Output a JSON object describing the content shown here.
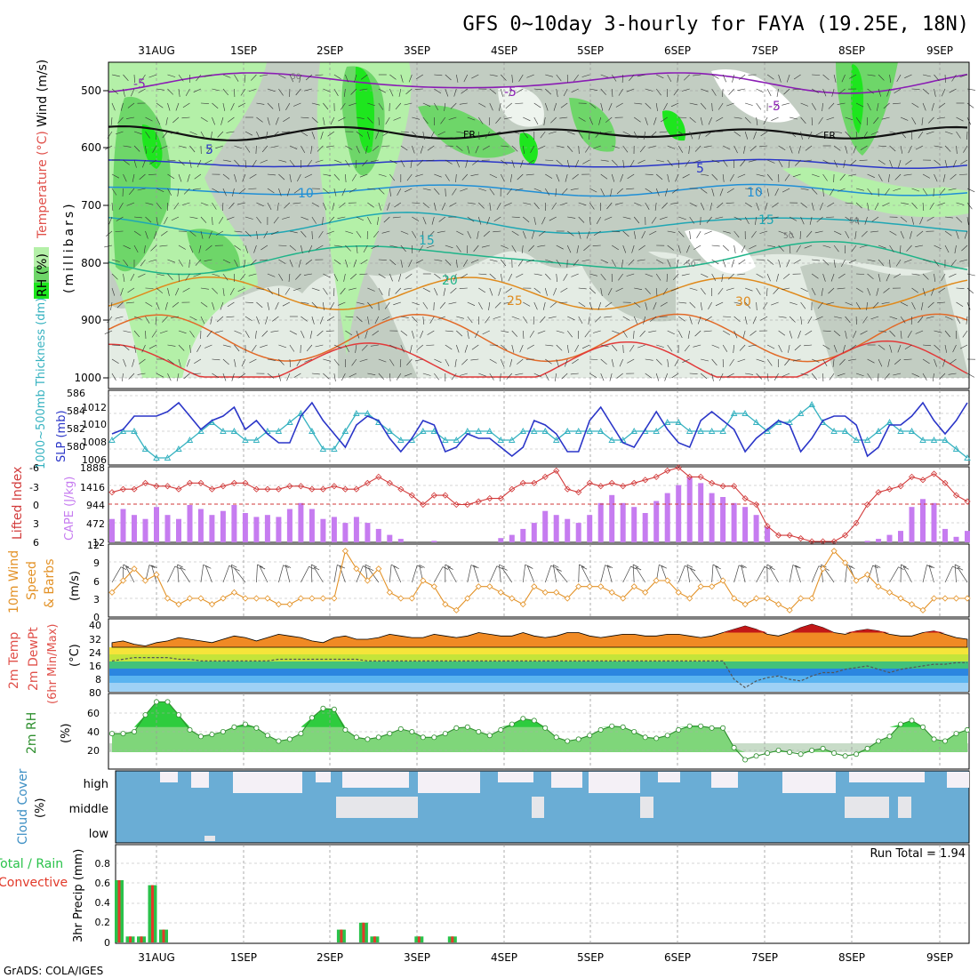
{
  "title": "GFS 0~10day 3-hourly for FAYA (19.25E, 18N)",
  "footer": "GrADS: COLA/IGES",
  "x_axis": {
    "day_labels": [
      "31AUG",
      "1SEP",
      "2SEP",
      "3SEP",
      "4SEP",
      "5SEP",
      "6SEP",
      "7SEP",
      "8SEP",
      "9SEP"
    ]
  },
  "colors": {
    "rh_green_light": "#b4f0a8",
    "rh_green_mid": "#6ed669",
    "rh_green_bright": "#1ee61e",
    "dry_gray": "#c2cdc2",
    "dry_gray_light": "#e4ece4",
    "slp_blue": "#2a35c8",
    "thickness_cyan": "#36b2c0",
    "lifted_red": "#d23a3a",
    "cape_purple": "#c67cf0",
    "wind_orange": "#e39227",
    "rh2m_green": "#2e8f2e",
    "cloud_blue": "#6aadd5",
    "cloud_white": "#f4f0f6",
    "precip_green": "#29c24a",
    "precip_red": "#e23a2a"
  },
  "panels": {
    "upper": {
      "ylabel_rh": "RH (%)",
      "ylabel_temp": "Temperature (°C)",
      "ylabel_wind": "Wind (m/s)",
      "ylabel_units": "(millibars)",
      "pressure_ticks": [
        "500",
        "600",
        "700",
        "800",
        "900",
        "1000"
      ],
      "isotherm_labels": [
        "-5",
        "-5",
        "-5",
        "FR",
        "FR",
        "5",
        "5",
        "10",
        "10",
        "15",
        "15",
        "20",
        "25",
        "30"
      ],
      "rh_labels": [
        "50",
        "50",
        "50",
        "50"
      ]
    },
    "slp": {
      "ylabel_thickness": "1000~500mb Thickness (dm)",
      "ylabel_slp": "SLP (mb)",
      "left_ticks": [
        "586",
        "584",
        "582",
        "580"
      ],
      "right_ticks": [
        "1012",
        "1010",
        "1008",
        "1006"
      ]
    },
    "cape": {
      "ylabel_li": "Lifted Index",
      "ylabel_cape": "CAPE (J/kg)",
      "left_ticks": [
        "-6",
        "-3",
        "0",
        "3",
        "6"
      ],
      "right_ticks": [
        "1888",
        "1416",
        "944",
        "472",
        "12"
      ]
    },
    "wind10m": {
      "ylabel_a": "10m Wind",
      "ylabel_b": "Speed",
      "ylabel_c": "& Barbs",
      "ylabel_units": "(m/s)",
      "ticks": [
        "12",
        "9",
        "6",
        "3",
        "0"
      ]
    },
    "temp2m": {
      "ylabel_a": "2m Temp",
      "ylabel_b": "2m DewPt",
      "ylabel_c": "(6hr Min/Max)",
      "ylabel_units": "(°C)",
      "ticks": [
        "40",
        "32",
        "24",
        "16",
        "8",
        "80"
      ]
    },
    "rh2m": {
      "ylabel": "2m RH",
      "ylabel_units": "(%)",
      "ticks": [
        "60",
        "40",
        "20"
      ]
    },
    "cloud": {
      "ylabel": "Cloud Cover",
      "ylabel_units": "(%)",
      "levels": [
        "high",
        "middle",
        "low"
      ]
    },
    "precip": {
      "ylabel_total": "Total / Rain",
      "ylabel_conv": "Convective",
      "ylabel_units": "3hr Precip (mm)",
      "ticks": [
        "0.8",
        "0.6",
        "0.4",
        "0.2",
        "0"
      ],
      "run_total": "Run Total = 1.94"
    }
  },
  "chart_data": {
    "type": "meteogram",
    "x_start": "2014-08-30T15Z",
    "step_hours": 3,
    "n_steps": 78,
    "slp_mb": [
      1009,
      1009.5,
      1011,
      1011,
      1011,
      1011.5,
      1012.5,
      1011,
      1009.5,
      1010.5,
      1011,
      1012,
      1009.5,
      1010.5,
      1009,
      1008,
      1008,
      1011,
      1012.5,
      1010.5,
      1009,
      1007.5,
      1010,
      1011,
      1010.5,
      1008.5,
      1007,
      1008.5,
      1010.5,
      1010,
      1007,
      1007.5,
      1009,
      1008.5,
      1008.5,
      1007.5,
      1006.5,
      1007.5,
      1010.5,
      1010,
      1009,
      1007,
      1007,
      1010.5,
      1012,
      1010,
      1008,
      1007.5,
      1009.5,
      1011.5,
      1009.5,
      1008,
      1007.5,
      1010.5,
      1011.5,
      1010.5,
      1009.5,
      1007,
      1008.5,
      1009.5,
      1010.5,
      1010,
      1007,
      1008.5,
      1010.5,
      1011,
      1011,
      1010,
      1006.5,
      1007.5,
      1010,
      1010,
      1011,
      1012.5,
      1010.5,
      1009,
      1010.5,
      1012.5
    ],
    "thickness_dm": [
      581,
      582,
      582,
      580,
      579,
      579,
      580,
      581,
      582,
      583,
      582,
      582,
      581,
      581,
      582,
      582,
      583,
      584,
      582,
      580,
      580,
      582,
      584,
      584,
      583,
      582,
      581,
      581,
      582,
      582,
      581,
      581,
      582,
      582,
      582,
      581,
      581,
      582,
      582,
      582,
      581,
      582,
      582,
      582,
      582,
      581,
      581,
      582,
      582,
      582,
      583,
      583,
      582,
      582,
      582,
      582,
      584,
      584,
      583,
      582,
      583,
      583,
      584,
      585,
      583,
      582,
      582,
      581,
      581,
      582,
      583,
      582,
      582,
      581,
      581,
      581,
      580,
      579
    ],
    "lifted_index": [
      -2,
      -2.5,
      -2.5,
      -3.5,
      -3,
      -3,
      -2.5,
      -3.5,
      -3.5,
      -2.5,
      -3,
      -3.5,
      -3.5,
      -2.5,
      -2.5,
      -2.5,
      -3,
      -3,
      -2.5,
      -2.5,
      -3,
      -2.5,
      -2.5,
      -3.5,
      -4.5,
      -3.5,
      -2.5,
      -1.5,
      0,
      -1.5,
      -1.5,
      0,
      0,
      -0.5,
      -1,
      -1,
      -2.5,
      -3.5,
      -3.5,
      -4.5,
      -5.5,
      -2.5,
      -2,
      -3.5,
      -3,
      -3.5,
      -3,
      -3.5,
      -4,
      -4.5,
      -5.5,
      -6,
      -4.5,
      -4.5,
      -3.5,
      -3,
      -3,
      -1,
      0,
      3.5,
      5,
      5,
      5.5,
      6,
      6,
      6,
      5,
      3,
      0,
      -2,
      -2.5,
      -3,
      -4.5,
      -4,
      -5,
      -3.5,
      -1.5,
      -0.5
    ],
    "cape_jkg": [
      600,
      850,
      700,
      600,
      900,
      700,
      600,
      950,
      850,
      700,
      800,
      950,
      750,
      650,
      700,
      650,
      850,
      1000,
      850,
      600,
      650,
      500,
      650,
      500,
      350,
      200,
      100,
      0,
      0,
      50,
      0,
      0,
      0,
      0,
      0,
      120,
      200,
      350,
      500,
      800,
      700,
      600,
      500,
      700,
      1000,
      1200,
      1000,
      900,
      750,
      1050,
      1250,
      1450,
      1650,
      1500,
      1250,
      1150,
      1000,
      900,
      700,
      400,
      0,
      0,
      0,
      0,
      0,
      0,
      0,
      0,
      50,
      100,
      200,
      300,
      900,
      1100,
      1000,
      350,
      150,
      300
    ],
    "wind_speed_ms": [
      4,
      6,
      8,
      6,
      7,
      3,
      2,
      3,
      3,
      2,
      3,
      4,
      3,
      3,
      3,
      2,
      2,
      3,
      3,
      3,
      3,
      11,
      8,
      6,
      8,
      4,
      3,
      3,
      6,
      5,
      2,
      1,
      3,
      5,
      5,
      4,
      3,
      2,
      5,
      4,
      4,
      3,
      5,
      5,
      5,
      4,
      3,
      5,
      4,
      6,
      6,
      4,
      3,
      5,
      5,
      6,
      3,
      2,
      3,
      3,
      2,
      1,
      3,
      3,
      8,
      11,
      9,
      6,
      7,
      5,
      4,
      3,
      2,
      1,
      3,
      3,
      3,
      3
    ],
    "temp_max_c": [
      30,
      31,
      29,
      28,
      30,
      31,
      33,
      32,
      31,
      30,
      32,
      34,
      33,
      31,
      33,
      35,
      34,
      33,
      31,
      30,
      33,
      34,
      32,
      32,
      33,
      35,
      34,
      33,
      33,
      35,
      34,
      33,
      34,
      36,
      35,
      34,
      34,
      36,
      34,
      33,
      34,
      36,
      36,
      34,
      33,
      34,
      35,
      35,
      34,
      34,
      35,
      35,
      34,
      33,
      34,
      36,
      38,
      40,
      38,
      35,
      34,
      36,
      39,
      41,
      39,
      36,
      35,
      37,
      38,
      37,
      35,
      34,
      34,
      36,
      37,
      35,
      33,
      32
    ],
    "dewpt_c": [
      19,
      20,
      21,
      21,
      21,
      21,
      20,
      20,
      19,
      19,
      19,
      19,
      19,
      19,
      19,
      20,
      20,
      20,
      20,
      20,
      20,
      20,
      20,
      19,
      19,
      19,
      19,
      19,
      19,
      19,
      19,
      19,
      19,
      19,
      19,
      19,
      19,
      19,
      19,
      19,
      19,
      19,
      19,
      19,
      19,
      19,
      19,
      19,
      19,
      19,
      19,
      19,
      19,
      19,
      19,
      19,
      8,
      3,
      7,
      9,
      10,
      8,
      7,
      10,
      12,
      12,
      14,
      15,
      16,
      14,
      12,
      14,
      15,
      16,
      17,
      17,
      18,
      18
    ],
    "rh2m_pct": [
      38,
      38,
      40,
      58,
      72,
      72,
      58,
      42,
      35,
      37,
      40,
      45,
      48,
      44,
      36,
      30,
      32,
      38,
      55,
      65,
      64,
      42,
      34,
      32,
      34,
      38,
      43,
      40,
      34,
      34,
      38,
      44,
      45,
      40,
      36,
      42,
      48,
      54,
      52,
      44,
      34,
      30,
      32,
      36,
      42,
      46,
      45,
      40,
      34,
      33,
      36,
      42,
      46,
      46,
      44,
      44,
      23,
      10,
      14,
      17,
      20,
      18,
      16,
      20,
      22,
      17,
      14,
      16,
      22,
      30,
      35,
      48,
      52,
      45,
      32,
      30,
      38,
      42
    ],
    "precip_total_mm": [
      0.63,
      0.06,
      0.06,
      0.58,
      0.13,
      0,
      0,
      0,
      0,
      0,
      0,
      0,
      0,
      0,
      0,
      0,
      0,
      0,
      0,
      0,
      0.13,
      0,
      0.2,
      0.06,
      0,
      0,
      0,
      0.06,
      0,
      0,
      0.06,
      0,
      0,
      0,
      0,
      0,
      0,
      0,
      0,
      0,
      0,
      0,
      0,
      0,
      0,
      0,
      0,
      0,
      0,
      0,
      0,
      0,
      0,
      0,
      0,
      0,
      0,
      0,
      0,
      0,
      0,
      0,
      0,
      0,
      0,
      0,
      0,
      0,
      0,
      0,
      0,
      0,
      0,
      0,
      0,
      0,
      0,
      0
    ],
    "run_total_mm": 1.94
  }
}
